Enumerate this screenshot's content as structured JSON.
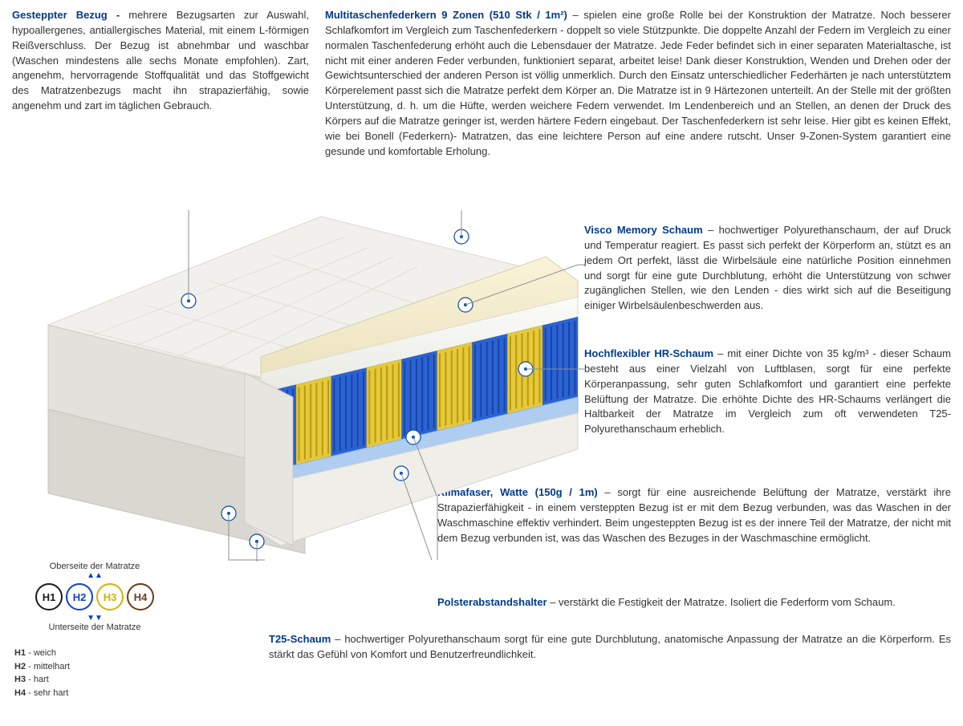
{
  "colors": {
    "title": "#003a8c",
    "text": "#333333",
    "leader": "#8a8f99",
    "marker_stroke": "#0a4aa8",
    "spring_blue": "#2a63d6",
    "spring_yellow": "#e6c93a",
    "foam_cream": "#f5efd6",
    "foam_white": "#f2f2f0",
    "base_blue": "#9ec6f2",
    "cover_grey": "#e8e7e3"
  },
  "sections": {
    "cover": {
      "title": "Gesteppter Bezug - ",
      "body": "mehrere Bezugsarten zur Auswahl, hypoallergenes, antiallergisches Material, mit einem L-förmigen Reißverschluss. Der Bezug ist abnehmbar  und waschbar (Waschen mindestens alle sechs Monate empfohlen). Zart, angenehm, hervorragende Stoffqualität und das Stoffgewicht des Matratzenbezugs macht ihn strapazierfähig, sowie angenehm und zart im täglichen Gebrauch."
    },
    "springs": {
      "title": "Multitaschenfederkern 9 Zonen (510 Stk / 1m²) ",
      "body": "–  spielen eine große Rolle bei der Konstruktion der Matratze. Noch besserer Schlafkomfort im Vergleich zum Taschenfederkern - doppelt so viele Stützpunkte. Die doppelte Anzahl der Federn im Vergleich zu einer normalen Taschenfederung erhöht auch die Lebensdauer der Matratze. Jede Feder befindet sich in einer separaten Materialtasche, ist nicht mit einer anderen Feder verbunden, funktioniert separat, arbeitet leise! Dank dieser Konstruktion, Wenden und Drehen oder der Gewichtsunterschied der anderen Person ist völlig unmerklich. Durch den Einsatz unterschiedlicher Federhärten je nach unterstütztem Körperelement passt sich die Matratze perfekt dem Körper an. Die Matratze ist in 9 Härtezonen unterteilt. An der Stelle mit der größten Unterstützung, d. h. um die Hüfte, werden weichere Federn verwendet. Im Lendenbereich und an Stellen, an denen der Druck des Körpers auf die Matratze geringer ist, werden härtere Federn eingebaut. Der Taschenfederkern ist sehr leise. Hier gibt es keinen Effekt, wie bei Bonell (Federkern)- Matratzen, das eine leichtere Person auf eine andere rutscht. Unser 9-Zonen-System garantiert eine gesunde und komfortable Erholung."
    },
    "visco": {
      "title": "Visco Memory Schaum ",
      "body": "–  hochwertiger Polyurethanschaum, der auf Druck und Temperatur reagiert. Es passt sich perfekt der Körperform an, stützt es an jedem Ort perfekt, lässt die Wirbelsäule eine natürliche Position einnehmen und sorgt für eine gute Durchblutung, erhöht die Unterstützung von schwer zugänglichen Stellen, wie den Lenden - dies wirkt sich auf die Beseitigung einiger  Wirbelsäulenbeschwerden aus."
    },
    "hr": {
      "title": "Hochflexibler HR-Schaum ",
      "body": "–  mit einer Dichte von 35 kg/m³ - dieser Schaum besteht aus einer Vielzahl von Luftblasen, sorgt für eine perfekte Körperanpassung, sehr guten Schlafkomfort und garantiert eine perfekte Belüftung der Matratze. Die erhöhte Dichte des HR-Schaums verlängert die Haltbarkeit der Matratze im Vergleich zum oft verwendeten T25-Polyurethanschaum erheblich."
    },
    "klima": {
      "title": "Klimafaser, Watte (150g / 1m) ",
      "body": "–  sorgt für eine ausreichende Belüftung der Matratze, verstärkt ihre Strapazierfähigkeit - in einem versteppten Bezug ist er mit dem Bezug verbunden, was das Waschen in der Waschmaschine effektiv verhindert. Beim ungesteppten Bezug ist es der innere Teil der Matratze, der nicht mit dem Bezug verbunden ist, was das Waschen des Bezuges in der Waschmaschine ermöglicht."
    },
    "polster": {
      "title": "Polsterabstandshalter ",
      "body": "– verstärkt die Festigkeit der Matratze. Isoliert die Federform vom Schaum."
    },
    "t25": {
      "title": "T25-Schaum ",
      "body": "– hochwertiger Polyurethanschaum sorgt für eine gute Durchblutung, anatomische Anpassung der Matratze an die Körperform. Es stärkt das Gefühl von Komfort und Benutzerfreundlichkeit."
    }
  },
  "legend": {
    "top": "Oberseite der Matratze",
    "bottom": "Unterseite der Matratze",
    "items": [
      {
        "label": "H1",
        "color": "#1a1a1a"
      },
      {
        "label": "H2",
        "color": "#1040d0"
      },
      {
        "label": "H3",
        "color": "#d4b300"
      },
      {
        "label": "H4",
        "color": "#6b3a1a"
      }
    ],
    "defs": [
      {
        "k": "H1",
        "v": " - weich"
      },
      {
        "k": "H2",
        "v": " - mittelhart"
      },
      {
        "k": "H3",
        "v": " - hart"
      },
      {
        "k": "H4",
        "v": " - sehr hart"
      }
    ]
  },
  "illustration": {
    "zones": [
      "blue",
      "yellow",
      "blue",
      "yellow",
      "blue",
      "yellow",
      "blue",
      "yellow",
      "blue"
    ]
  }
}
